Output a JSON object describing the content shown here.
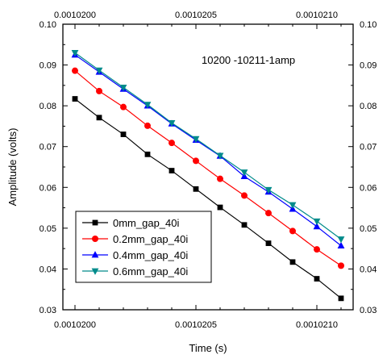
{
  "chart_data": {
    "type": "line",
    "title": "",
    "xlabel": "Time (s)",
    "ylabel": "Amplitude (volts)",
    "annotation": "10200 -10211-1amp",
    "xlim": [
      0.00101995,
      0.00102115
    ],
    "ylim": [
      0.03,
      0.1
    ],
    "x_ticks": [
      "0.0010200",
      "0.0010205",
      "0.0010210"
    ],
    "x_tick_values": [
      0.00102,
      0.0010205,
      0.001021
    ],
    "y_ticks": [
      "0.03",
      "0.04",
      "0.05",
      "0.06",
      "0.07",
      "0.08",
      "0.09",
      "0.10"
    ],
    "y_tick_values": [
      0.03,
      0.04,
      0.05,
      0.06,
      0.07,
      0.08,
      0.09,
      0.1
    ],
    "mirror_axes": true,
    "grid": false,
    "legend_position": "bottom-left",
    "x": [
      0.00102,
      0.0010201,
      0.0010202,
      0.0010203,
      0.0010204,
      0.0010205,
      0.0010206,
      0.0010207,
      0.0010208,
      0.0010209,
      0.001021,
      0.0010211
    ],
    "series": [
      {
        "name": "0mm_gap_40i",
        "color": "#000000",
        "marker": "square",
        "values": [
          0.0817,
          0.0771,
          0.073,
          0.0681,
          0.0641,
          0.0596,
          0.0551,
          0.0508,
          0.0463,
          0.0417,
          0.0376,
          0.0328
        ]
      },
      {
        "name": "0.2mm_gap_40i",
        "color": "#ff0000",
        "marker": "circle",
        "values": [
          0.0886,
          0.0836,
          0.0797,
          0.0751,
          0.0709,
          0.0665,
          0.0621,
          0.058,
          0.0537,
          0.0493,
          0.0448,
          0.0408
        ]
      },
      {
        "name": "0.4mm_gap_40i",
        "color": "#0000ff",
        "marker": "triangle-up",
        "values": [
          0.0925,
          0.0883,
          0.0841,
          0.08,
          0.0756,
          0.0716,
          0.0677,
          0.0627,
          0.0589,
          0.0547,
          0.0504,
          0.0457
        ]
      },
      {
        "name": "0.6mm_gap_40i",
        "color": "#008b8b",
        "marker": "triangle-down",
        "values": [
          0.093,
          0.0887,
          0.0845,
          0.0803,
          0.0758,
          0.0719,
          0.0678,
          0.0637,
          0.0594,
          0.0557,
          0.0517,
          0.0473
        ]
      }
    ]
  }
}
